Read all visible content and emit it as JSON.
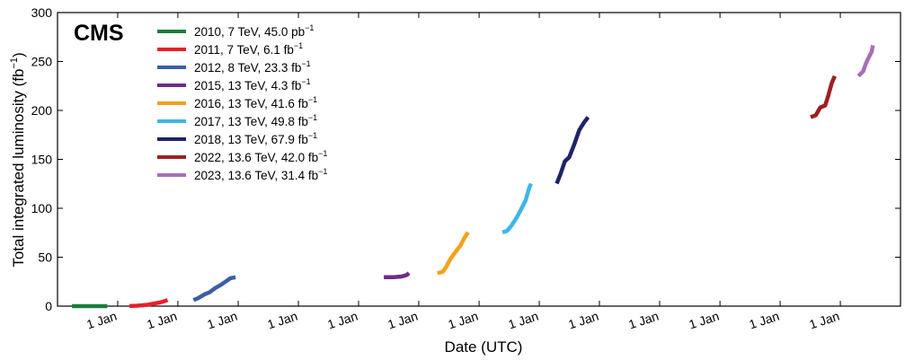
{
  "chart_data": {
    "type": "line",
    "experiment_label": "CMS",
    "xlabel": "Date (UTC)",
    "ylabel_main": "Total integrated luminosity (fb",
    "ylabel_sup": "−1",
    "ylabel_close": ")",
    "ylim": [
      0,
      300
    ],
    "y_ticks": [
      0,
      50,
      100,
      150,
      200,
      250,
      300
    ],
    "x_axis_kind": "date",
    "xlim": [
      "2010-01-01",
      "2024-01-01"
    ],
    "x_tick_dates": [
      "2011-01-01",
      "2012-01-01",
      "2013-01-01",
      "2014-01-01",
      "2015-01-01",
      "2016-01-01",
      "2017-01-01",
      "2018-01-01",
      "2019-01-01",
      "2020-01-01",
      "2021-01-01",
      "2022-01-01",
      "2023-01-01"
    ],
    "x_tick_label": "1 Jan",
    "legend_position": "top-left",
    "series": [
      {
        "name": "2010, 7 TeV, 45.0 pb",
        "unit_sup": "−1",
        "color": "#1a7d3a",
        "points": [
          [
            "2010-03-30",
            0
          ],
          [
            "2010-10-30",
            0.04
          ]
        ]
      },
      {
        "name": "2011, 7 TeV, 6.1 fb",
        "unit_sup": "−1",
        "color": "#e8202a",
        "points": [
          [
            "2011-03-13",
            0.05
          ],
          [
            "2011-05-01",
            0.5
          ],
          [
            "2011-07-01",
            1.4
          ],
          [
            "2011-08-15",
            2.8
          ],
          [
            "2011-09-15",
            3.8
          ],
          [
            "2011-10-15",
            5.2
          ],
          [
            "2011-10-31",
            6.2
          ]
        ]
      },
      {
        "name": "2012, 8 TeV, 23.3 fb",
        "unit_sup": "−1",
        "color": "#3b5ea8",
        "points": [
          [
            "2012-04-05",
            6.2
          ],
          [
            "2012-05-01",
            8
          ],
          [
            "2012-06-10",
            12
          ],
          [
            "2012-07-10",
            14
          ],
          [
            "2012-08-15",
            18.5
          ],
          [
            "2012-09-15",
            21.5
          ],
          [
            "2012-10-15",
            25
          ],
          [
            "2012-11-15",
            28.5
          ],
          [
            "2012-12-16",
            29.5
          ]
        ]
      },
      {
        "name": "2015, 13 TeV, 4.3 fb",
        "unit_sup": "−1",
        "color": "#6f2c87",
        "points": [
          [
            "2015-06-03",
            29.5
          ],
          [
            "2015-08-01",
            29.6
          ],
          [
            "2015-09-20",
            30.3
          ],
          [
            "2015-10-20",
            31.8
          ],
          [
            "2015-11-03",
            33.8
          ]
        ]
      },
      {
        "name": "2016, 13 TeV, 41.6 fb",
        "unit_sup": "−1",
        "color": "#f4a11d",
        "points": [
          [
            "2016-04-23",
            33.8
          ],
          [
            "2016-05-25",
            35
          ],
          [
            "2016-06-15",
            40
          ],
          [
            "2016-07-10",
            48
          ],
          [
            "2016-08-05",
            54
          ],
          [
            "2016-09-10",
            62
          ],
          [
            "2016-10-05",
            70
          ],
          [
            "2016-10-26",
            75.4
          ]
        ]
      },
      {
        "name": "2017, 13 TeV, 49.8 fb",
        "unit_sup": "−1",
        "color": "#3fb6e8",
        "points": [
          [
            "2017-05-23",
            75.4
          ],
          [
            "2017-06-20",
            77
          ],
          [
            "2017-07-15",
            82
          ],
          [
            "2017-08-15",
            90
          ],
          [
            "2017-09-10",
            98
          ],
          [
            "2017-10-10",
            108
          ],
          [
            "2017-11-01",
            121
          ],
          [
            "2017-11-12",
            125.2
          ]
        ]
      },
      {
        "name": "2018, 13 TeV, 67.9 fb",
        "unit_sup": "−1",
        "color": "#1f2466",
        "points": [
          [
            "2018-04-17",
            125.2
          ],
          [
            "2018-05-10",
            135
          ],
          [
            "2018-06-05",
            148
          ],
          [
            "2018-07-01",
            152
          ],
          [
            "2018-08-01",
            165
          ],
          [
            "2018-09-01",
            180
          ],
          [
            "2018-10-01",
            188
          ],
          [
            "2018-10-24",
            193.1
          ]
        ]
      },
      {
        "name": "2022, 13.6 TeV, 42.0 fb",
        "unit_sup": "−1",
        "color": "#9e1f22",
        "points": [
          [
            "2022-07-05",
            193.1
          ],
          [
            "2022-08-05",
            195
          ],
          [
            "2022-09-01",
            203
          ],
          [
            "2022-10-01",
            205
          ],
          [
            "2022-10-20",
            215
          ],
          [
            "2022-11-10",
            228
          ],
          [
            "2022-11-28",
            235.1
          ]
        ]
      },
      {
        "name": "2023, 13.6 TeV, 31.4 fb",
        "unit_sup": "−1",
        "color": "#a86eb8",
        "points": [
          [
            "2023-04-21",
            235.1
          ],
          [
            "2023-05-20",
            240
          ],
          [
            "2023-06-05",
            248
          ],
          [
            "2023-06-25",
            255
          ],
          [
            "2023-07-10",
            260
          ],
          [
            "2023-07-18",
            266.5
          ]
        ]
      }
    ]
  }
}
